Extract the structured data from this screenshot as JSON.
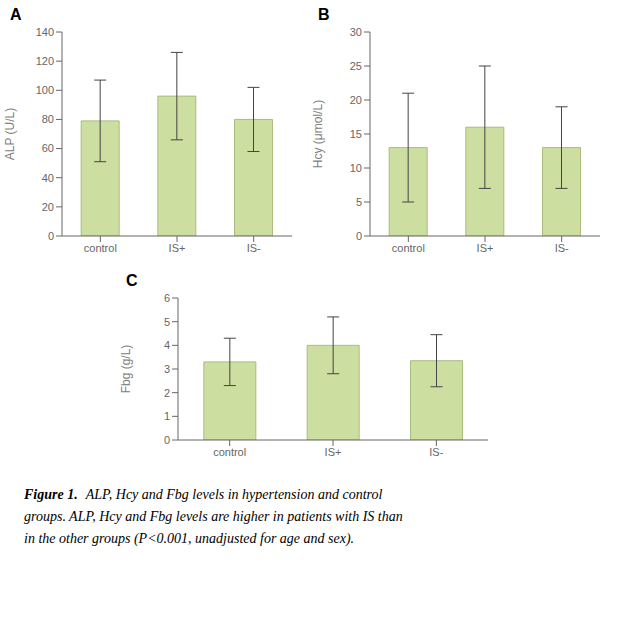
{
  "chart_data": [
    {
      "type": "bar",
      "title": "A",
      "categories": [
        "control",
        "IS+",
        "IS-"
      ],
      "values": [
        79,
        96,
        80
      ],
      "errors": [
        28,
        30,
        22
      ],
      "ylabel": "ALP (U/L)",
      "ylim": [
        0,
        140
      ],
      "yticks": [
        0,
        20,
        40,
        60,
        80,
        100,
        120,
        140
      ],
      "color": "#ccdea0",
      "grid": false
    },
    {
      "type": "bar",
      "title": "B",
      "categories": [
        "control",
        "IS+",
        "IS-"
      ],
      "values": [
        13,
        16,
        13
      ],
      "errors": [
        8,
        9,
        6
      ],
      "ylabel": "Hcy (μmol/L)",
      "ylim": [
        0,
        30
      ],
      "yticks": [
        0,
        5,
        10,
        15,
        20,
        25,
        30
      ],
      "color": "#ccdea0",
      "grid": false
    },
    {
      "type": "bar",
      "title": "C",
      "categories": [
        "control",
        "IS+",
        "IS-"
      ],
      "values": [
        3.3,
        4.0,
        3.35
      ],
      "errors": [
        1.0,
        1.2,
        1.1
      ],
      "ylabel": "Fbg (g/L)",
      "ylim": [
        0,
        6
      ],
      "yticks": [
        0,
        1,
        2,
        3,
        4,
        5,
        6
      ],
      "color": "#ccdea0",
      "grid": false
    }
  ],
  "caption": {
    "bold": "Figure 1.",
    "lines": [
      "ALP, Hcy and Fbg levels in hypertension and control",
      "groups. ALP, Hcy and Fbg levels are higher in patients with IS than",
      "in the other groups (P<0.001, unadjusted for age and sex)."
    ]
  }
}
